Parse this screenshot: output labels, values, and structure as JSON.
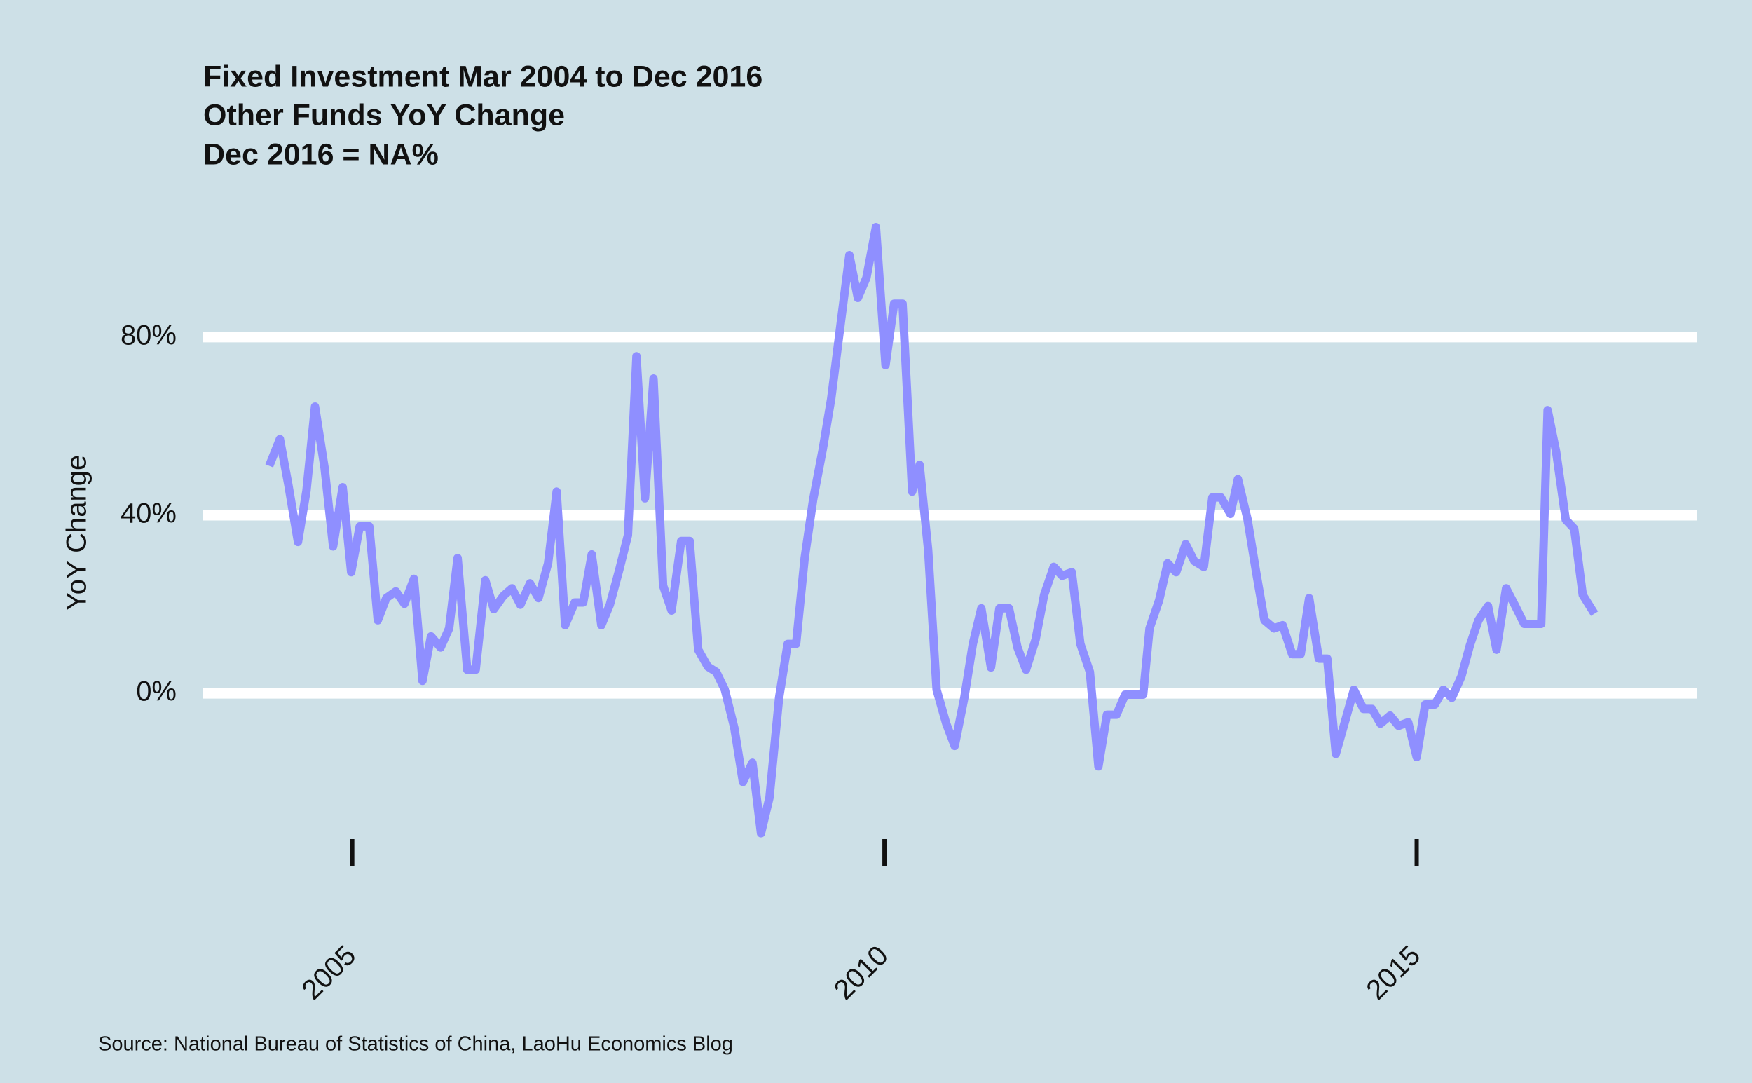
{
  "chart_data": {
    "type": "line",
    "title_lines": [
      "Fixed Investment Mar 2004 to Dec 2016",
      "Other Funds YoY Change",
      "Dec 2016 = NA%"
    ],
    "ylabel": "YoY Change",
    "source": "Source: National Bureau of Statistics of China, LaoHu Economics Blog",
    "color": "#8f8fff",
    "xlim": [
      2003.6,
      2017.63
    ],
    "xticks": [
      2005,
      2010,
      2015
    ],
    "ylim": [
      -45,
      108
    ],
    "yticks": [
      {
        "value": 0,
        "label": "0%"
      },
      {
        "value": 40,
        "label": "40%"
      },
      {
        "value": 80,
        "label": "80%"
      }
    ],
    "grid": true,
    "x": [
      2004.22,
      2004.32,
      2004.4,
      2004.49,
      2004.57,
      2004.65,
      2004.74,
      2004.82,
      2004.91,
      2004.99,
      2005.07,
      2005.16,
      2005.24,
      2005.32,
      2005.41,
      2005.49,
      2005.58,
      2005.66,
      2005.74,
      2005.83,
      2005.91,
      2005.99,
      2006.08,
      2006.16,
      2006.25,
      2006.33,
      2006.42,
      2006.5,
      2006.58,
      2006.67,
      2006.75,
      2006.84,
      2006.92,
      2007.0,
      2007.09,
      2007.17,
      2007.25,
      2007.34,
      2007.42,
      2007.51,
      2007.59,
      2007.67,
      2007.75,
      2007.83,
      2007.92,
      2008.0,
      2008.09,
      2008.17,
      2008.25,
      2008.34,
      2008.42,
      2008.5,
      2008.59,
      2008.67,
      2008.76,
      2008.84,
      2008.92,
      2009.01,
      2009.09,
      2009.17,
      2009.25,
      2009.33,
      2009.42,
      2009.5,
      2009.59,
      2009.67,
      2009.75,
      2009.83,
      2009.92,
      2010.01,
      2010.09,
      2010.17,
      2010.26,
      2010.33,
      2010.41,
      2010.49,
      2010.58,
      2010.66,
      2010.75,
      2010.83,
      2010.91,
      2011.0,
      2011.08,
      2011.17,
      2011.25,
      2011.33,
      2011.42,
      2011.5,
      2011.59,
      2011.67,
      2011.76,
      2011.84,
      2011.93,
      2012.01,
      2012.09,
      2012.18,
      2012.26,
      2012.35,
      2012.43,
      2012.49,
      2012.58,
      2012.66,
      2012.74,
      2012.83,
      2012.91,
      2013.0,
      2013.08,
      2013.16,
      2013.25,
      2013.32,
      2013.41,
      2013.49,
      2013.57,
      2013.66,
      2013.74,
      2013.83,
      2013.91,
      2013.99,
      2014.08,
      2014.16,
      2014.24,
      2014.33,
      2014.41,
      2014.5,
      2014.58,
      2014.66,
      2014.75,
      2014.83,
      2014.92,
      2015.0,
      2015.08,
      2015.17,
      2015.25,
      2015.33,
      2015.42,
      2015.5,
      2015.58,
      2015.67,
      2015.75,
      2015.84,
      2015.92,
      2016.01,
      2016.09,
      2016.17,
      2016.23,
      2016.31,
      2016.4,
      2016.48,
      2016.56,
      2016.67
    ],
    "values": [
      51.1,
      57.1,
      46.8,
      34.0,
      45.5,
      64.4,
      50.6,
      33.0,
      46.3,
      27.2,
      37.5,
      37.5,
      16.4,
      21.4,
      22.9,
      20.1,
      25.7,
      2.8,
      12.8,
      10.3,
      14.6,
      30.4,
      5.3,
      5.3,
      25.4,
      18.9,
      21.9,
      23.6,
      19.9,
      24.7,
      21.4,
      29.2,
      45.3,
      15.3,
      20.4,
      20.4,
      31.2,
      15.3,
      19.9,
      27.9,
      35.5,
      75.7,
      43.8,
      70.7,
      24.2,
      18.6,
      34.2,
      34.2,
      9.8,
      6.0,
      4.8,
      0.8,
      -7.8,
      -19.9,
      -15.6,
      -31.4,
      -23.4,
      -1.0,
      11.1,
      11.1,
      30.4,
      43.5,
      54.8,
      66.2,
      83.3,
      98.4,
      88.8,
      93.3,
      104.7,
      73.7,
      87.5,
      87.5,
      45.3,
      51.3,
      32.2,
      0.8,
      -6.8,
      -11.8,
      -1.0,
      11.1,
      19.1,
      5.8,
      19.1,
      19.1,
      10.3,
      5.3,
      12.1,
      22.1,
      28.4,
      26.4,
      27.2,
      11.1,
      4.8,
      -16.4,
      -4.8,
      -4.8,
      -0.3,
      -0.3,
      -0.3,
      14.6,
      20.9,
      29.2,
      27.2,
      33.5,
      29.7,
      28.4,
      44.0,
      44.0,
      40.3,
      48.1,
      39.2,
      27.4,
      16.4,
      14.6,
      15.3,
      8.8,
      8.8,
      21.4,
      7.8,
      7.8,
      -13.6,
      -6.0,
      0.8,
      -3.5,
      -3.5,
      -6.8,
      -5.0,
      -7.3,
      -6.5,
      -14.3,
      -2.5,
      -2.5,
      0.8,
      -1.0,
      3.8,
      10.8,
      16.4,
      19.6,
      9.8,
      23.6,
      19.9,
      15.6,
      15.6,
      15.6,
      63.6,
      54.3,
      39.0,
      37.0,
      22.1,
      17.9
    ]
  }
}
